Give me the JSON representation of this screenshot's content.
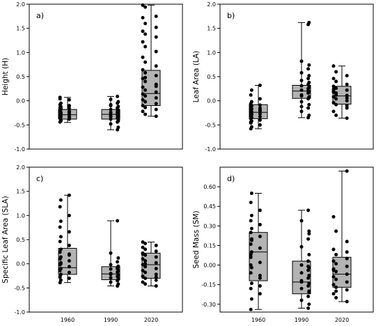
{
  "chart_data": [
    {
      "type": "box",
      "panel_label": "a)",
      "ylabel": "Height (H)",
      "xlabel": "",
      "categories": [
        "1960",
        "1990",
        "2020"
      ],
      "x_tick_labels_shown": false,
      "ylim": [
        -1.0,
        2.0
      ],
      "yticks": [
        -1.0,
        -0.5,
        0.0,
        0.5,
        1.0,
        1.5,
        2.0
      ],
      "ytick_labels": [
        "-1.0",
        "-0.5",
        "0.0",
        "0.5",
        "1.0",
        "1.5",
        "2.0"
      ],
      "grid": false,
      "boxes": [
        {
          "category": "1960",
          "whisker_low": -0.45,
          "q1": -0.38,
          "median": -0.29,
          "q3": -0.18,
          "whisker_high": 0.07
        },
        {
          "category": "1990",
          "whisker_low": -0.6,
          "q1": -0.38,
          "median": -0.28,
          "q3": -0.18,
          "whisker_high": 0.09
        },
        {
          "category": "2020",
          "whisker_low": -0.32,
          "q1": -0.1,
          "median": 0.15,
          "q3": 0.63,
          "whisker_high": 1.98
        }
      ],
      "points": [
        [
          -0.44,
          -0.4,
          -0.38,
          -0.36,
          -0.34,
          -0.33,
          -0.31,
          -0.3,
          -0.29,
          -0.28,
          -0.27,
          -0.26,
          -0.25,
          -0.24,
          -0.22,
          -0.2,
          -0.18,
          -0.16,
          -0.14,
          -0.12,
          -0.1,
          -0.08,
          -0.05,
          0.02,
          0.07,
          -0.42,
          -0.35,
          -0.3,
          -0.27,
          -0.23,
          -0.19,
          -0.15,
          -0.11,
          0.04
        ],
        [
          -0.6,
          -0.55,
          -0.48,
          -0.44,
          -0.4,
          -0.38,
          -0.36,
          -0.34,
          -0.32,
          -0.3,
          -0.29,
          -0.28,
          -0.27,
          -0.26,
          -0.24,
          -0.22,
          -0.2,
          -0.18,
          -0.15,
          -0.12,
          -0.08,
          -0.05,
          -0.02,
          0.03,
          0.09,
          -0.42,
          -0.33,
          -0.25,
          -0.19,
          -0.1
        ],
        [
          -0.32,
          -0.28,
          -0.22,
          -0.18,
          -0.14,
          -0.1,
          -0.06,
          -0.02,
          0.02,
          0.06,
          0.1,
          0.14,
          0.18,
          0.22,
          0.28,
          0.34,
          0.4,
          0.46,
          0.52,
          0.58,
          0.64,
          0.72,
          0.8,
          0.9,
          1.02,
          1.12,
          1.22,
          1.32,
          1.38,
          1.44,
          1.52,
          1.6,
          1.72,
          1.75,
          1.94,
          1.98,
          0.3,
          0.48
        ]
      ]
    },
    {
      "type": "box",
      "panel_label": "b)",
      "ylabel": "Leaf Area (LA)",
      "xlabel": "",
      "categories": [
        "1960",
        "1990",
        "2020"
      ],
      "x_tick_labels_shown": false,
      "ylim": [
        -1.0,
        2.0
      ],
      "yticks": [
        -1.0,
        -0.5,
        0.0,
        0.5,
        1.0,
        1.5,
        2.0
      ],
      "ytick_labels": [
        "-1.0",
        "-0.5",
        "0.0",
        "0.5",
        "1.0",
        "1.5",
        "2.0"
      ],
      "grid": false,
      "boxes": [
        {
          "category": "1960",
          "whisker_low": -0.58,
          "q1": -0.37,
          "median": -0.24,
          "q3": -0.08,
          "whisker_high": 0.32
        },
        {
          "category": "1990",
          "whisker_low": -0.35,
          "q1": 0.05,
          "median": 0.2,
          "q3": 0.32,
          "whisker_high": 1.62
        },
        {
          "category": "2020",
          "whisker_low": -0.36,
          "q1": -0.07,
          "median": 0.1,
          "q3": 0.3,
          "whisker_high": 0.72
        }
      ],
      "points": [
        [
          -0.58,
          -0.54,
          -0.5,
          -0.46,
          -0.42,
          -0.4,
          -0.37,
          -0.35,
          -0.33,
          -0.31,
          -0.29,
          -0.27,
          -0.25,
          -0.23,
          -0.21,
          -0.19,
          -0.17,
          -0.15,
          -0.13,
          -0.11,
          -0.09,
          -0.06,
          -0.02,
          0.04,
          0.12,
          0.22,
          0.32,
          -0.44,
          -0.28,
          -0.18,
          -0.08
        ],
        [
          -0.35,
          -0.3,
          -0.22,
          -0.15,
          -0.08,
          -0.02,
          0.04,
          0.08,
          0.12,
          0.16,
          0.19,
          0.22,
          0.25,
          0.28,
          0.31,
          0.34,
          0.38,
          0.42,
          0.46,
          0.52,
          0.58,
          0.66,
          0.74,
          0.82,
          1.58,
          1.62,
          0.1,
          0.2,
          0.3,
          -0.12
        ],
        [
          -0.36,
          -0.3,
          -0.22,
          -0.15,
          -0.08,
          -0.04,
          0.0,
          0.04,
          0.08,
          0.11,
          0.14,
          0.18,
          0.22,
          0.26,
          0.3,
          0.34,
          0.4,
          0.46,
          0.52,
          0.6,
          0.72,
          0.06,
          0.16,
          0.24,
          -0.1,
          0.12,
          0.2
        ]
      ]
    },
    {
      "type": "box",
      "panel_label": "c)",
      "ylabel": "Specific Leaf Area (SLA)",
      "xlabel": "",
      "categories": [
        "1960",
        "1990",
        "2020"
      ],
      "x_tick_labels_shown": false,
      "ylim": [
        -1.0,
        2.0
      ],
      "yticks": [
        -1.0,
        -0.5,
        0.0,
        0.5,
        1.0,
        1.5,
        2.0
      ],
      "ytick_labels": [
        "-1.0",
        "-0.5",
        "0.0",
        "0.5",
        "1.0",
        "1.5",
        "2.0"
      ],
      "grid": false,
      "boxes": [
        {
          "category": "1960",
          "whisker_low": -0.39,
          "q1": -0.22,
          "median": -0.08,
          "q3": 0.32,
          "whisker_high": 1.42
        },
        {
          "category": "1990",
          "whisker_low": -0.46,
          "q1": -0.33,
          "median": -0.21,
          "q3": -0.06,
          "whisker_high": 0.89
        },
        {
          "category": "2020",
          "whisker_low": -0.46,
          "q1": -0.3,
          "median": -0.02,
          "q3": 0.22,
          "whisker_high": 0.45
        }
      ],
      "points": [
        [
          -0.39,
          -0.34,
          -0.3,
          -0.26,
          -0.22,
          -0.18,
          -0.14,
          -0.1,
          -0.06,
          -0.02,
          0.02,
          0.06,
          0.1,
          0.14,
          0.18,
          0.24,
          0.3,
          0.38,
          0.46,
          0.56,
          0.66,
          0.76,
          0.88,
          1.0,
          1.18,
          1.32,
          1.42,
          -0.12,
          0.0,
          0.2,
          -0.28
        ],
        [
          -0.46,
          -0.42,
          -0.38,
          -0.35,
          -0.32,
          -0.29,
          -0.26,
          -0.23,
          -0.2,
          -0.17,
          -0.14,
          -0.11,
          -0.08,
          -0.05,
          -0.02,
          0.04,
          0.12,
          0.22,
          0.89,
          -0.3,
          -0.22,
          -0.1
        ],
        [
          -0.46,
          -0.42,
          -0.38,
          -0.34,
          -0.3,
          -0.26,
          -0.22,
          -0.18,
          -0.14,
          -0.1,
          -0.06,
          -0.02,
          0.02,
          0.06,
          0.1,
          0.14,
          0.18,
          0.22,
          0.26,
          0.3,
          0.34,
          0.38,
          0.42,
          0.45,
          -0.28,
          0.0,
          0.2
        ]
      ]
    },
    {
      "type": "box",
      "panel_label": "d)",
      "ylabel": "Seed Mass (SM)",
      "xlabel": "",
      "categories": [
        "1960",
        "1990",
        "2020"
      ],
      "x_tick_labels_shown": true,
      "ylim": [
        -0.36,
        0.75
      ],
      "yticks": [
        -0.3,
        -0.15,
        0.0,
        0.15,
        0.3,
        0.45,
        0.6
      ],
      "ytick_labels": [
        "-0.30",
        "-0.15",
        "0.00",
        "0.15",
        "0.30",
        "0.45",
        "0.60"
      ],
      "grid": false,
      "boxes": [
        {
          "category": "1960",
          "whisker_low": -0.34,
          "q1": -0.12,
          "median": 0.1,
          "q3": 0.25,
          "whisker_high": 0.55
        },
        {
          "category": "1990",
          "whisker_low": -0.33,
          "q1": -0.22,
          "median": -0.13,
          "q3": 0.03,
          "whisker_high": 0.42
        },
        {
          "category": "2020",
          "whisker_low": -0.28,
          "q1": -0.17,
          "median": -0.07,
          "q3": 0.06,
          "whisker_high": 0.72
        }
      ],
      "points": [
        [
          -0.34,
          -0.26,
          -0.22,
          -0.18,
          -0.14,
          -0.1,
          -0.06,
          -0.02,
          0.02,
          0.06,
          0.1,
          0.13,
          0.16,
          0.19,
          0.22,
          0.25,
          0.28,
          0.31,
          0.34,
          0.38,
          0.42,
          0.48,
          0.55,
          -0.08,
          0.08,
          0.2,
          -0.16,
          0.0
        ],
        [
          -0.33,
          -0.3,
          -0.27,
          -0.24,
          -0.21,
          -0.18,
          -0.16,
          -0.14,
          -0.12,
          -0.1,
          -0.08,
          -0.06,
          -0.04,
          -0.02,
          0.0,
          0.03,
          0.08,
          0.14,
          0.2,
          0.26,
          0.34,
          0.42,
          -0.2,
          -0.13,
          -0.01,
          0.24
        ],
        [
          -0.28,
          -0.25,
          -0.22,
          -0.19,
          -0.17,
          -0.15,
          -0.13,
          -0.11,
          -0.09,
          -0.07,
          -0.05,
          -0.03,
          -0.01,
          0.01,
          0.03,
          0.05,
          0.08,
          0.12,
          0.18,
          0.26,
          0.37,
          0.72,
          -0.2,
          -0.04,
          0.1
        ]
      ]
    }
  ]
}
